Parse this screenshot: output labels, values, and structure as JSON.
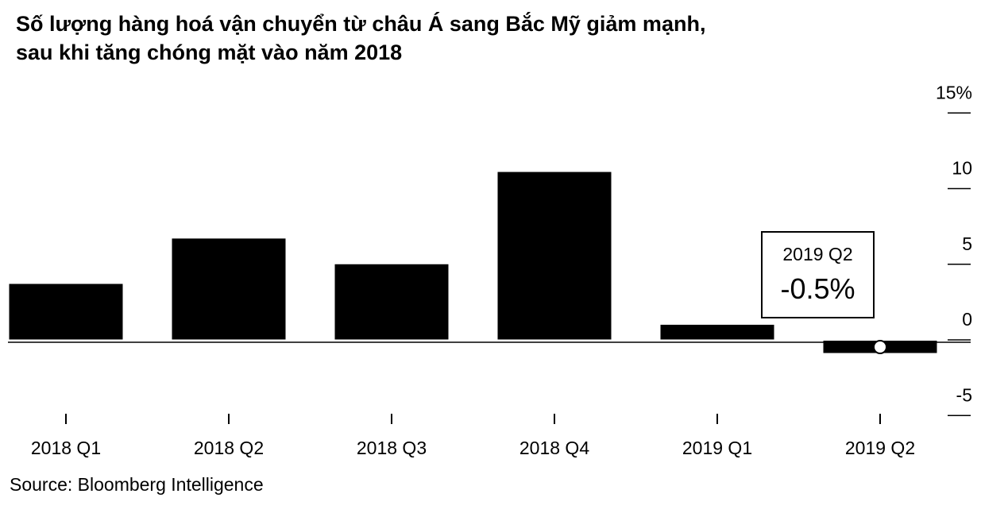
{
  "chart_data": {
    "type": "bar",
    "title_lines": [
      "Số lượng hàng hoá vận chuyển từ châu Á sang Bắc Mỹ giảm mạnh,",
      "sau khi tăng chóng mặt vào năm 2018"
    ],
    "categories": [
      "2018 Q1",
      "2018 Q2",
      "2018 Q3",
      "2018 Q4",
      "2019 Q1",
      "2019 Q2"
    ],
    "values": [
      3.7,
      6.7,
      5.0,
      11.1,
      1.0,
      -0.5
    ],
    "ylim": [
      -5,
      15
    ],
    "yticks": [
      {
        "value": 15,
        "label": "15%"
      },
      {
        "value": 10,
        "label": "10"
      },
      {
        "value": 5,
        "label": "5"
      },
      {
        "value": 0,
        "label": "0"
      },
      {
        "value": -5,
        "label": "-5"
      }
    ],
    "y_axis_position": "right",
    "grid": false,
    "bar_color": "#000000",
    "annotation": {
      "category": "2019 Q2",
      "label": "2019 Q2",
      "value_label": "-0.5%"
    },
    "source": "Source: Bloomberg Intelligence"
  }
}
